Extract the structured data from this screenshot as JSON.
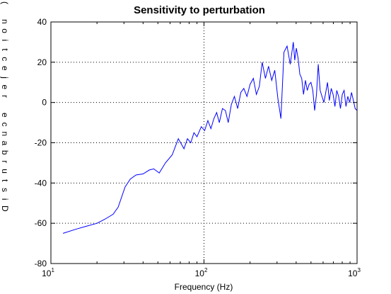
{
  "chart_data": {
    "type": "line",
    "title": "Sensitivity to perturbation",
    "xlabel": "Frequency (Hz)",
    "ylabel": "Disturbance rejection (",
    "x_scale": "log",
    "xlim": [
      10,
      1000
    ],
    "ylim": [
      -80,
      40
    ],
    "x_ticks": [
      {
        "value": 10,
        "base": "10",
        "exp": "1"
      },
      {
        "value": 100,
        "base": "10",
        "exp": "2"
      },
      {
        "value": 1000,
        "base": "10",
        "exp": "3"
      }
    ],
    "y_ticks": [
      {
        "value": 40,
        "label": "40"
      },
      {
        "value": 20,
        "label": "20"
      },
      {
        "value": 0,
        "label": "0"
      },
      {
        "value": -20,
        "label": "-20"
      },
      {
        "value": -40,
        "label": "-40"
      },
      {
        "value": -60,
        "label": "-60"
      },
      {
        "value": -80,
        "label": "-80"
      }
    ],
    "grid": true,
    "line_color": "#0000ff",
    "series": [
      {
        "x": [
          12,
          14.5,
          17,
          20,
          22.5,
          25.5,
          27.5,
          30.5,
          33,
          36,
          40,
          44,
          47,
          51,
          56,
          62,
          68,
          74,
          78,
          82,
          86,
          90,
          96,
          101,
          106,
          111,
          116,
          121,
          126,
          132,
          138,
          144,
          151,
          158,
          166,
          174,
          182,
          191,
          200,
          210,
          220,
          230,
          240,
          252,
          264,
          277,
          290,
          304,
          318,
          333,
          349,
          366,
          383,
          392,
          401,
          412,
          423,
          435,
          447,
          460,
          473,
          486,
          500,
          514,
          528,
          543,
          558,
          574,
          590,
          607,
          624,
          641,
          659,
          678,
          697,
          717,
          737,
          758,
          779,
          801,
          823,
          846,
          870,
          895,
          920,
          946,
          972,
          1000
        ],
        "y": [
          -65,
          -63,
          -61.5,
          -60,
          -58,
          -55.5,
          -52,
          -42,
          -38,
          -36,
          -35.5,
          -33.5,
          -33,
          -35,
          -30,
          -26,
          -18,
          -23,
          -18,
          -20,
          -15,
          -17,
          -12,
          -14,
          -9,
          -13,
          -8,
          -5,
          -10,
          -3,
          -4,
          -10,
          -1,
          3,
          -3,
          5,
          7,
          3,
          9,
          12,
          4,
          8,
          20,
          12,
          18,
          11,
          16,
          2,
          -8,
          25,
          28,
          19,
          30,
          21,
          27,
          22,
          14,
          12,
          4,
          11,
          6,
          9,
          10,
          6,
          -4,
          4,
          19,
          6,
          3,
          0,
          5,
          10,
          1,
          7,
          4,
          -2,
          6,
          3,
          -3,
          4,
          6,
          -2,
          3,
          0,
          5,
          1,
          -3,
          -4
        ]
      }
    ]
  }
}
